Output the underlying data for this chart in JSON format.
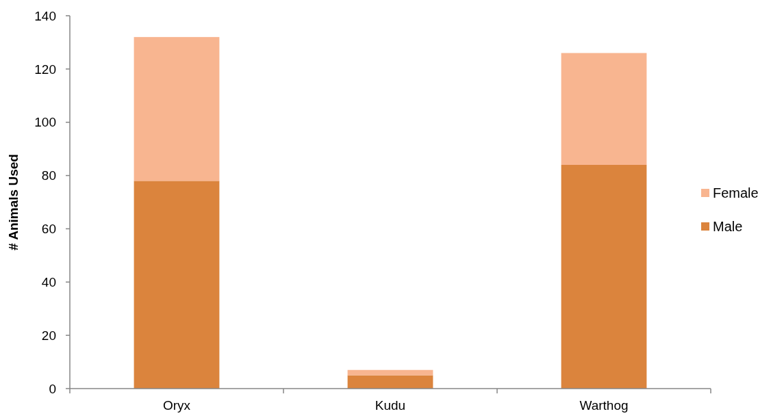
{
  "chart_data": {
    "type": "bar",
    "stacked": true,
    "ylabel": "# Animals Used",
    "categories": [
      "Oryx",
      "Kudu",
      "Warthog"
    ],
    "series": [
      {
        "name": "Male",
        "color": "#db843d",
        "values": [
          78,
          5,
          84
        ]
      },
      {
        "name": "Female",
        "color": "#f8b590",
        "values": [
          54,
          2,
          42
        ]
      }
    ],
    "ylim": [
      0,
      140
    ],
    "yticks": [
      0,
      20,
      40,
      60,
      80,
      100,
      120,
      140
    ],
    "grid": false,
    "legend": "right"
  }
}
